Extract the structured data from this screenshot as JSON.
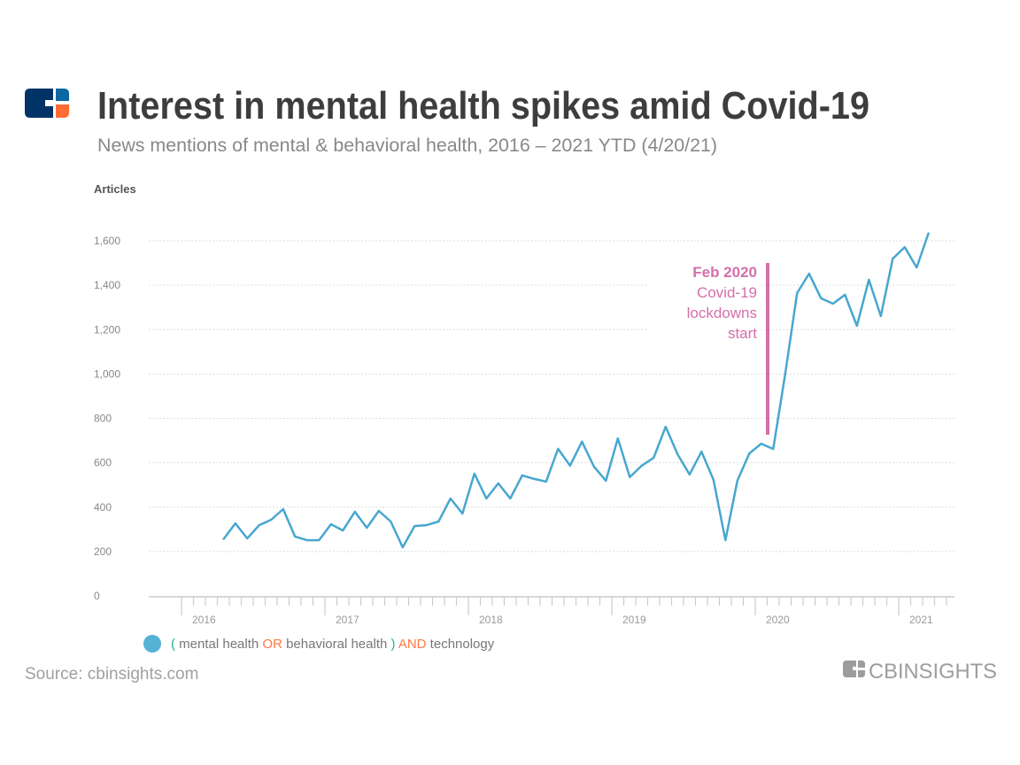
{
  "header": {
    "title": "Interest in mental health spikes amid Covid-19",
    "subtitle": "News mentions of mental & behavioral health, 2016 – 2021 YTD (4/20/21)",
    "logo_icon": "cb-insights-mark-icon"
  },
  "legend": {
    "marker_color": "#56b1d6",
    "parts": [
      "(",
      " mental health ",
      "OR",
      " behavioral health ",
      ")",
      " AND",
      " technology"
    ]
  },
  "footer": {
    "source": "Source: cbinsights.com",
    "brand_logo": "CBINSIGHTS"
  },
  "colors": {
    "line": "#47a7cf",
    "annotation": "#d46faa",
    "title": "#3d3d3d",
    "logo_navy": "#003366",
    "logo_blue": "#0b67a0",
    "logo_orange": "#ff6b35",
    "paren": "#2bb08a",
    "operator": "#ff7a45"
  },
  "chart_data": {
    "type": "line",
    "ylabel": "Articles",
    "xlabel": "",
    "ylim": [
      0,
      1600
    ],
    "yticks": [
      "0",
      "200",
      "400",
      "600",
      "800",
      "1,000",
      "1,200",
      "1,400",
      "1,600"
    ],
    "ytick_values": [
      0,
      200,
      400,
      600,
      800,
      1000,
      1200,
      1400,
      1600
    ],
    "xticks": [
      "2016",
      "2017",
      "2018",
      "2019",
      "2020",
      "2021"
    ],
    "xlim": [
      "2016-01",
      "2021-05"
    ],
    "grid": true,
    "legend_position": "bottom-left",
    "series": [
      {
        "name": "( mental health OR behavioral health ) AND technology",
        "x": [
          "2016-04",
          "2016-05",
          "2016-06",
          "2016-07",
          "2016-08",
          "2016-09",
          "2016-10",
          "2016-11",
          "2016-12",
          "2017-01",
          "2017-02",
          "2017-03",
          "2017-04",
          "2017-05",
          "2017-06",
          "2017-07",
          "2017-08",
          "2017-09",
          "2017-10",
          "2017-11",
          "2017-12",
          "2018-01",
          "2018-02",
          "2018-03",
          "2018-04",
          "2018-05",
          "2018-06",
          "2018-07",
          "2018-08",
          "2018-09",
          "2018-10",
          "2018-11",
          "2018-12",
          "2019-01",
          "2019-02",
          "2019-03",
          "2019-04",
          "2019-05",
          "2019-06",
          "2019-07",
          "2019-08",
          "2019-09",
          "2019-10",
          "2019-11",
          "2019-12",
          "2020-01",
          "2020-02",
          "2020-03",
          "2020-04",
          "2020-05",
          "2020-06",
          "2020-07",
          "2020-08",
          "2020-09",
          "2020-10",
          "2020-11",
          "2020-12",
          "2021-01",
          "2021-02",
          "2021-03"
        ],
        "values": [
          255,
          327,
          259,
          319,
          343,
          391,
          267,
          251,
          251,
          323,
          295,
          379,
          307,
          383,
          335,
          219,
          315,
          319,
          335,
          439,
          371,
          551,
          439,
          507,
          439,
          543,
          527,
          515,
          663,
          587,
          695,
          583,
          519,
          710,
          535,
          587,
          623,
          762,
          638,
          547,
          650,
          523,
          251,
          519,
          642,
          686,
          662,
          1000,
          1365,
          1452,
          1341,
          1317,
          1357,
          1217,
          1425,
          1261,
          1520,
          1572,
          1480,
          1636
        ]
      }
    ],
    "annotations": [
      {
        "x": "2020-02",
        "title": "Feb 2020",
        "lines": [
          "Covid-19",
          "lockdowns",
          "start"
        ]
      }
    ]
  }
}
